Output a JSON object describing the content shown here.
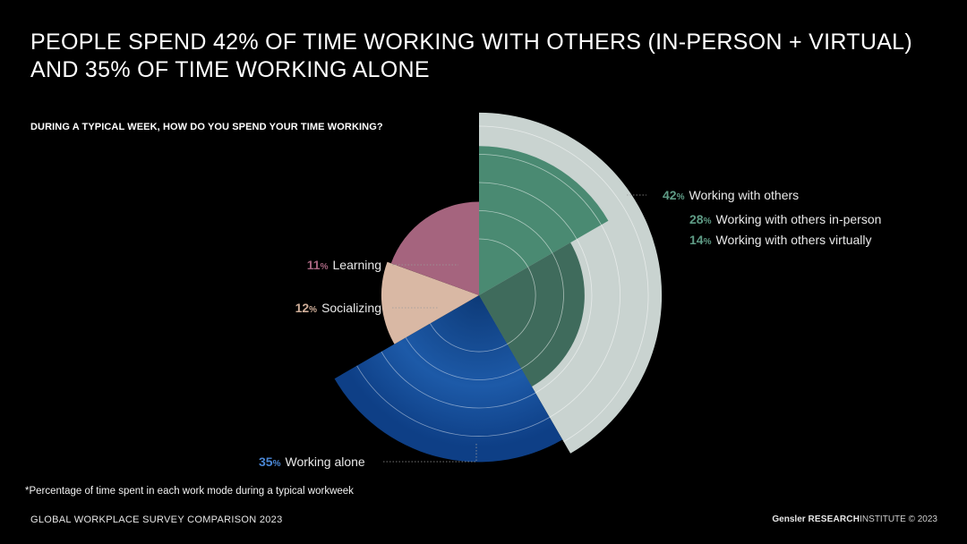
{
  "title_line1": "PEOPLE SPEND 42% OF TIME WORKING WITH OTHERS (IN-PERSON + VIRTUAL)",
  "title_line2": "AND 35% OF TIME WORKING ALONE",
  "question": "DURING A TYPICAL WEEK, HOW DO YOU SPEND YOUR TIME WORKING?",
  "footnote": "*Percentage of time spent in each work mode during a typical workweek",
  "footer_left": "GLOBAL WORKPLACE SURVEY COMPARISON 2023",
  "footer_brand": "Gensler",
  "footer_research": "RESEARCH",
  "footer_institute": "INSTITUTE © 2023",
  "chart_data": {
    "type": "polar-area",
    "unit": "%",
    "segments": [
      {
        "id": "with-others",
        "label": "Working with others",
        "value": 42,
        "color": "#c9d3d0"
      },
      {
        "id": "in-person",
        "label": "Working with others in-person",
        "value": 28,
        "color": "#4a8a72",
        "parent": "with-others"
      },
      {
        "id": "virtually",
        "label": "Working with others virtually",
        "value": 14,
        "color": "#3f6b5c",
        "parent": "with-others"
      },
      {
        "id": "alone",
        "label": "Working alone",
        "value": 35,
        "color": "#1f5aa6"
      },
      {
        "id": "socializing",
        "label": "Socializing",
        "value": 12,
        "color": "#d9b8a4"
      },
      {
        "id": "learning",
        "label": "Learning",
        "value": 11,
        "color": "#a5647e"
      }
    ],
    "label_colors": {
      "with-others": "#5f9c86",
      "in-person": "#5f9c86",
      "virtually": "#5f9c86",
      "alone": "#4a86d4",
      "socializing": "#cfae99",
      "learning": "#a5647e"
    }
  }
}
